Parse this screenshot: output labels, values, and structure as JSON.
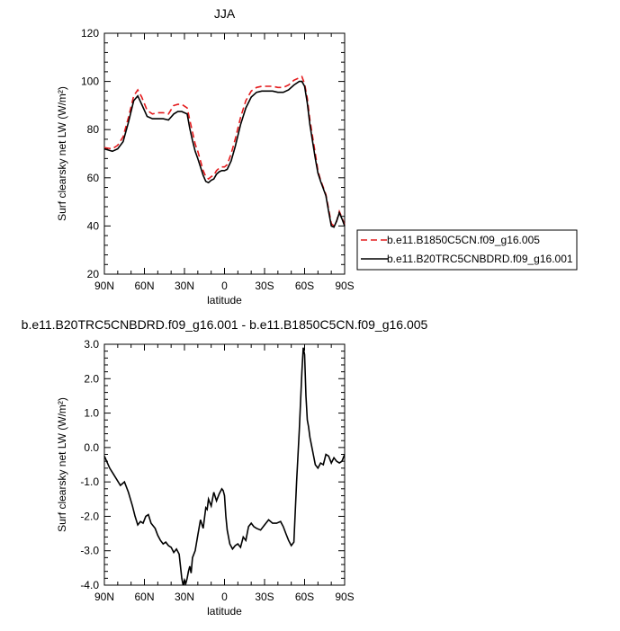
{
  "chart_data": [
    {
      "type": "line",
      "title": "JJA",
      "xlabel": "latitude",
      "ylabel": "Surf clearsky net LW (W/m²)",
      "xlim": [
        90,
        -90
      ],
      "ylim": [
        20,
        120
      ],
      "xticks": [
        90,
        60,
        30,
        0,
        -30,
        -60,
        -90
      ],
      "xtick_labels": [
        "90N",
        "60N",
        "30N",
        "0",
        "30S",
        "60S",
        "90S"
      ],
      "yticks": [
        20,
        40,
        60,
        80,
        100,
        120
      ],
      "ytick_labels": [
        "20",
        "40",
        "60",
        "80",
        "100",
        "120"
      ],
      "legend_position": "right",
      "series": [
        {
          "name": "b.e11.B1850C5CN.f09_g16.005",
          "color": "#e41a1c",
          "style": "dashed",
          "x": [
            90,
            84,
            80,
            76,
            72,
            68,
            65,
            62,
            58,
            54,
            50,
            46,
            42,
            38,
            35,
            32,
            28,
            26,
            24,
            22,
            20,
            18,
            16,
            14,
            12,
            10,
            8,
            6,
            4,
            2,
            0,
            -2,
            -5,
            -8,
            -12,
            -16,
            -20,
            -24,
            -28,
            -32,
            -36,
            -40,
            -44,
            -48,
            -52,
            -56,
            -58,
            -60,
            -62,
            -64,
            -66,
            -68,
            -70,
            -72,
            -74,
            -76,
            -78,
            -80,
            -82,
            -84,
            -86,
            -88,
            -90
          ],
          "y": [
            72.5,
            72,
            73.5,
            77,
            85,
            94,
            96.5,
            93.5,
            88,
            86.5,
            87,
            87,
            86.5,
            90,
            90.5,
            90.5,
            89,
            84,
            79,
            74,
            71,
            67,
            63,
            60.5,
            59.5,
            60.5,
            61,
            63,
            64,
            64.5,
            64.5,
            65.5,
            70,
            76,
            85,
            92,
            96,
            97.5,
            98,
            98,
            98,
            97.5,
            97.5,
            98.5,
            100.5,
            101.5,
            102,
            99,
            93,
            84,
            77,
            70,
            63,
            59,
            56,
            53,
            47,
            41,
            40,
            42,
            46,
            43.5,
            40.5
          ]
        },
        {
          "name": "b.e11.B20TRC5CNBDRD.f09_g16.001",
          "color": "#000000",
          "style": "solid",
          "x": [
            90,
            84,
            80,
            76,
            72,
            68,
            65,
            62,
            58,
            54,
            50,
            46,
            42,
            38,
            35,
            32,
            28,
            26,
            24,
            22,
            20,
            18,
            16,
            14,
            12,
            10,
            8,
            6,
            4,
            2,
            0,
            -2,
            -5,
            -8,
            -12,
            -16,
            -20,
            -24,
            -28,
            -32,
            -36,
            -40,
            -44,
            -48,
            -52,
            -56,
            -58,
            -60,
            -62,
            -64,
            -66,
            -68,
            -70,
            -72,
            -74,
            -76,
            -78,
            -80,
            -82,
            -84,
            -86,
            -88,
            -90
          ],
          "y": [
            72,
            71,
            72,
            75,
            83,
            92,
            94,
            90.5,
            85.5,
            84.5,
            84.5,
            84.5,
            84,
            86.5,
            87.5,
            87.5,
            86.5,
            80.5,
            75.5,
            71,
            68,
            64.5,
            61,
            58.5,
            58,
            59,
            59.5,
            61.5,
            62.5,
            63,
            63,
            63.5,
            67,
            73,
            82,
            89,
            93.5,
            95.5,
            96,
            96,
            96,
            95.5,
            95.5,
            96.5,
            98.5,
            100,
            100,
            98,
            91,
            82,
            75,
            68,
            62,
            58.5,
            55.5,
            52.5,
            46,
            40,
            39.5,
            42,
            45.5,
            43,
            40
          ]
        }
      ]
    },
    {
      "type": "line",
      "title": "b.e11.B20TRC5CNBDRD.f09_g16.001 - b.e11.B1850C5CN.f09_g16.005",
      "xlabel": "latitude",
      "ylabel": "Surf clearsky net LW (W/m²)",
      "xlim": [
        90,
        -90
      ],
      "ylim": [
        -4.0,
        3.0
      ],
      "xticks": [
        90,
        60,
        30,
        0,
        -30,
        -60,
        -90
      ],
      "xtick_labels": [
        "90N",
        "60N",
        "30N",
        "0",
        "30S",
        "60S",
        "90S"
      ],
      "yticks": [
        -4,
        -3,
        -2,
        -1,
        0,
        1,
        2,
        3
      ],
      "ytick_labels": [
        "-4.0",
        "-3.0",
        "-2.0",
        "-1.0",
        "0.0",
        "1.0",
        "2.0",
        "3.0"
      ],
      "series": [
        {
          "color": "#000000",
          "style": "solid",
          "x": [
            90,
            86,
            82,
            78,
            75,
            72,
            69,
            67,
            65,
            63,
            61,
            59,
            57,
            55,
            52,
            50,
            48,
            46,
            44,
            42,
            40,
            38,
            36,
            34,
            32,
            31,
            30,
            29,
            28,
            27,
            26,
            25,
            24,
            22,
            20,
            18,
            16,
            14,
            13,
            12,
            10,
            8,
            6,
            4,
            2,
            1,
            0,
            -1,
            -2,
            -4,
            -6,
            -8,
            -10,
            -12,
            -14,
            -16,
            -18,
            -20,
            -22,
            -24,
            -27,
            -30,
            -33,
            -36,
            -39,
            -42,
            -44,
            -46,
            -48,
            -50,
            -52,
            -54,
            -56,
            -58,
            -59,
            -60,
            -61,
            -62,
            -63,
            -64,
            -66,
            -68,
            -70,
            -72,
            -74,
            -76,
            -78,
            -80,
            -82,
            -84,
            -86,
            -88,
            -90
          ],
          "y": [
            -0.25,
            -0.6,
            -0.85,
            -1.1,
            -1.0,
            -1.3,
            -1.7,
            -2.0,
            -2.25,
            -2.15,
            -2.2,
            -2.0,
            -1.95,
            -2.2,
            -2.35,
            -2.55,
            -2.7,
            -2.8,
            -2.75,
            -2.85,
            -2.9,
            -3.05,
            -2.95,
            -3.1,
            -3.8,
            -4.0,
            -3.85,
            -3.95,
            -3.8,
            -3.6,
            -3.45,
            -3.65,
            -3.2,
            -3.0,
            -2.55,
            -2.1,
            -2.35,
            -1.75,
            -1.8,
            -1.5,
            -1.7,
            -1.3,
            -1.55,
            -1.35,
            -1.2,
            -1.25,
            -1.4,
            -2.0,
            -2.4,
            -2.8,
            -2.95,
            -2.85,
            -2.8,
            -2.9,
            -2.6,
            -2.7,
            -2.3,
            -2.2,
            -2.3,
            -2.35,
            -2.4,
            -2.25,
            -2.1,
            -2.2,
            -2.2,
            -2.15,
            -2.3,
            -2.5,
            -2.7,
            -2.85,
            -2.75,
            -1.0,
            0.5,
            2.2,
            2.9,
            2.7,
            1.5,
            0.8,
            0.6,
            0.3,
            -0.1,
            -0.5,
            -0.6,
            -0.45,
            -0.5,
            -0.2,
            -0.25,
            -0.45,
            -0.3,
            -0.4,
            -0.45,
            -0.4,
            -0.2
          ]
        }
      ]
    }
  ]
}
